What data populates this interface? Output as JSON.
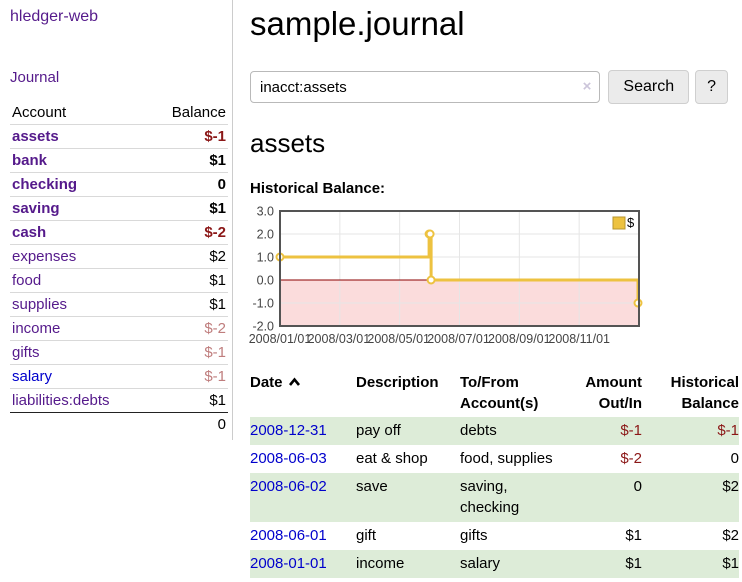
{
  "app": {
    "title": "hledger-web"
  },
  "sidebar": {
    "journal_label": "Journal",
    "headers": {
      "account": "Account",
      "balance": "Balance"
    },
    "rows": [
      {
        "name": "assets",
        "balance": "$-1",
        "depth": 1,
        "strong": true,
        "balance_class": "neg"
      },
      {
        "name": "bank",
        "balance": "$1",
        "depth": 2,
        "strong": true,
        "balance_class": ""
      },
      {
        "name": "checking",
        "balance": "0",
        "depth": 3,
        "strong": true,
        "balance_class": ""
      },
      {
        "name": "saving",
        "balance": "$1",
        "depth": 3,
        "strong": true,
        "balance_class": ""
      },
      {
        "name": "cash",
        "balance": "$-2",
        "depth": 2,
        "strong": true,
        "balance_class": "neg"
      },
      {
        "name": "expenses",
        "balance": "$2",
        "depth": 1,
        "strong": false,
        "balance_class": ""
      },
      {
        "name": "food",
        "balance": "$1",
        "depth": 2,
        "strong": false,
        "balance_class": ""
      },
      {
        "name": "supplies",
        "balance": "$1",
        "depth": 2,
        "strong": false,
        "balance_class": ""
      },
      {
        "name": "income",
        "balance": "$-2",
        "depth": 1,
        "strong": false,
        "balance_class": "neg-faded"
      },
      {
        "name": "gifts",
        "balance": "$-1",
        "depth": 2,
        "strong": false,
        "balance_class": "neg-faded"
      },
      {
        "name": "salary",
        "balance": "$-1",
        "depth": 2,
        "strong": false,
        "balance_class": "neg-faded",
        "link_color": "blue"
      },
      {
        "name": "liabilities:debts",
        "balance": "$1",
        "depth": 1,
        "strong": false,
        "balance_class": ""
      }
    ],
    "total": "0"
  },
  "header": {
    "title": "sample.journal"
  },
  "search": {
    "value": "inacct:assets",
    "clear_icon": "×",
    "button_label": "Search",
    "help_label": "?"
  },
  "account_page": {
    "heading": "assets",
    "chart_label": "Historical Balance:"
  },
  "chart_data": {
    "type": "line",
    "title": "Historical Balance:",
    "step": true,
    "series": [
      {
        "name": "$",
        "color": "#edc240",
        "points": [
          {
            "date": "2008-01-01",
            "value": 1
          },
          {
            "date": "2008-06-01",
            "value": 2
          },
          {
            "date": "2008-06-02",
            "value": 2
          },
          {
            "date": "2008-06-03",
            "value": 0
          },
          {
            "date": "2008-12-31",
            "value": -1
          }
        ]
      }
    ],
    "x_range": [
      "2008-01-01",
      "2009-01-01"
    ],
    "x_ticks": [
      {
        "date": "2008-01-01",
        "label": "2008/01/01"
      },
      {
        "date": "2008-03-01",
        "label": "2008/03/01"
      },
      {
        "date": "2008-05-01",
        "label": "2008/05/01"
      },
      {
        "date": "2008-07-01",
        "label": "2008/07/01"
      },
      {
        "date": "2008-09-01",
        "label": "2008/09/01"
      },
      {
        "date": "2008-11-01",
        "label": "2008/11/01"
      }
    ],
    "y_ticks": [
      3.0,
      2.0,
      1.0,
      0.0,
      -1.0,
      -2.0
    ],
    "y_tick_labels": [
      "3.0",
      "2.0",
      "1.0",
      "0.0",
      "-1.0",
      "-2.0"
    ],
    "ylim": [
      -2,
      3
    ],
    "grid": true,
    "legend": {
      "label": "$",
      "position": "top-right"
    },
    "colors": {
      "grid_line": "#e6e6e6",
      "border": "#545454",
      "zero_line": "#8b0000",
      "negative_area": "#fbdcdc",
      "tick_text": "#444444",
      "marker_fill": "#ffffff"
    }
  },
  "register": {
    "headers": [
      {
        "label": "Date",
        "sorted": "asc"
      },
      {
        "label": "Description"
      },
      {
        "label": "To/From Account(s)"
      },
      {
        "label": "Amount Out/In"
      },
      {
        "label": "Historical Balance"
      }
    ],
    "rows": [
      {
        "date": "2008-12-31",
        "description": "pay off",
        "accounts": "debts",
        "amount": "$-1",
        "amount_neg": true,
        "balance": "$-1",
        "balance_neg": true
      },
      {
        "date": "2008-06-03",
        "description": "eat & shop",
        "accounts": "food, supplies",
        "amount": "$-2",
        "amount_neg": true,
        "balance": "0",
        "balance_neg": false
      },
      {
        "date": "2008-06-02",
        "description": "save",
        "accounts": "saving, checking",
        "amount": "0",
        "amount_neg": false,
        "balance": "$2",
        "balance_neg": false
      },
      {
        "date": "2008-06-01",
        "description": "gift",
        "accounts": "gifts",
        "amount": "$1",
        "amount_neg": false,
        "balance": "$2",
        "balance_neg": false
      },
      {
        "date": "2008-01-01",
        "description": "income",
        "accounts": "salary",
        "amount": "$1",
        "amount_neg": false,
        "balance": "$1",
        "balance_neg": false
      }
    ]
  }
}
